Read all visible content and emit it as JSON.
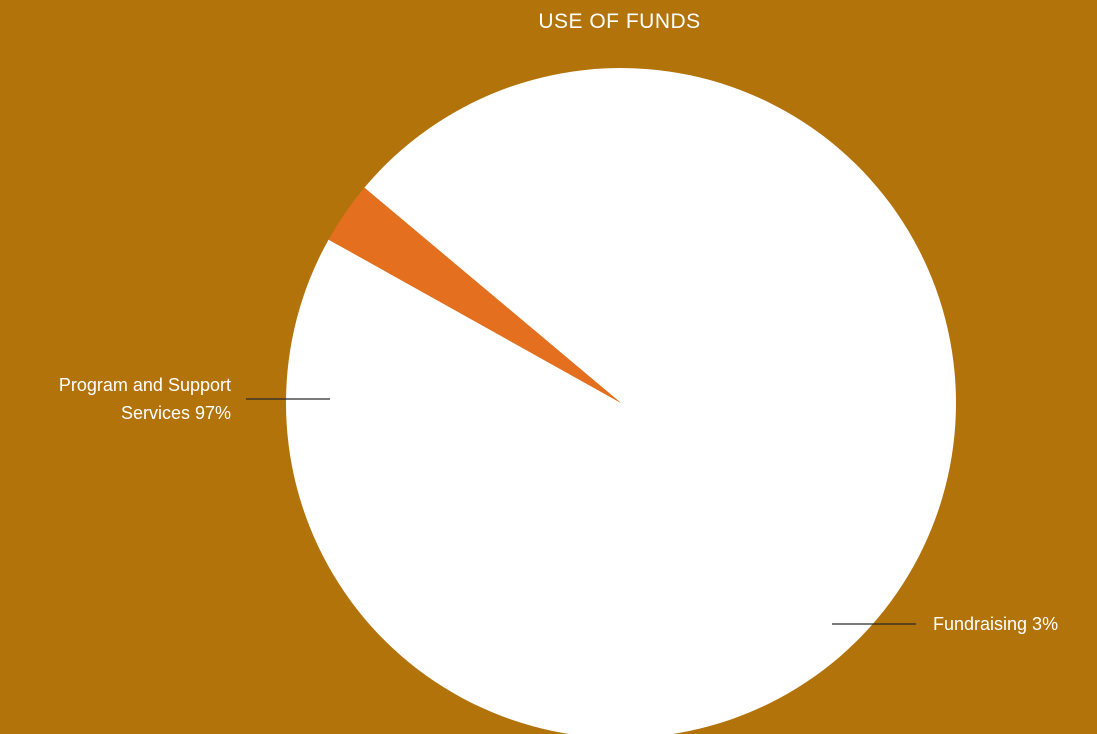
{
  "chart_data": {
    "type": "pie",
    "title": "USE OF FUNDS",
    "slices": [
      {
        "label_line1": "Program and Support",
        "label_line2": "Services 97%",
        "category": "Program and Support Services",
        "value": 97,
        "color": "#FFFFFF"
      },
      {
        "label_line1": "Fundraising 3%",
        "category": "Fundraising",
        "value": 3,
        "color": "#E36F1F"
      }
    ],
    "legend": "none",
    "background_color": "#B2730A"
  }
}
